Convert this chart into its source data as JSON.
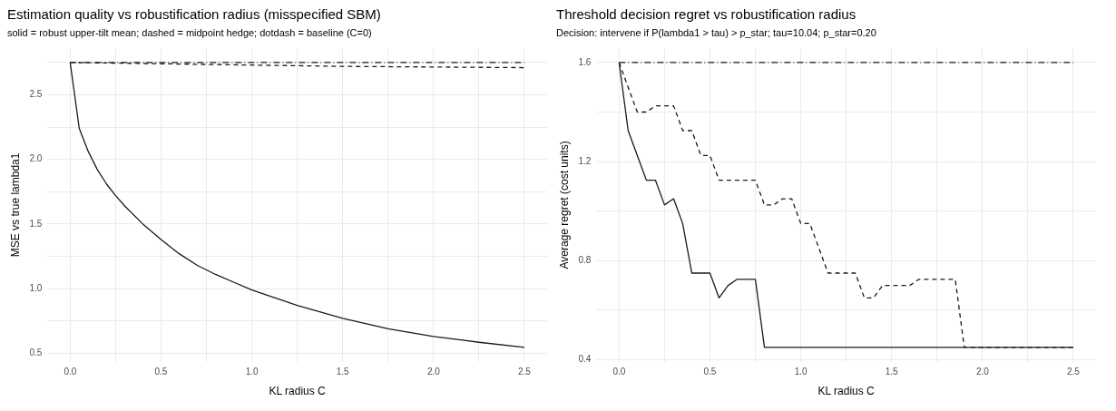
{
  "chart_data": [
    {
      "type": "line",
      "title": "Estimation quality vs robustification radius (misspecified SBM)",
      "subtitle": "solid = robust upper-tilt mean; dashed = midpoint hedge; dotdash = baseline (C=0)",
      "xlabel": "KL radius C",
      "ylabel": "MSE vs true lambda1",
      "xlim": [
        -0.125,
        2.625
      ],
      "ylim": [
        0.435,
        2.86
      ],
      "xticks": [
        {
          "value": 0,
          "label": "0.0"
        },
        {
          "value": 0.25,
          "label": null
        },
        0.5,
        {
          "value": 0.75,
          "label": null
        },
        {
          "value": 1,
          "label": "1.0"
        },
        {
          "value": 1.25,
          "label": null
        },
        1.5,
        {
          "value": 1.75,
          "label": null
        },
        {
          "value": 2,
          "label": "2.0"
        },
        {
          "value": 2.25,
          "label": null
        },
        2.5
      ],
      "yticks": [
        0.5,
        {
          "value": 0.75,
          "label": null
        },
        {
          "value": 1,
          "label": "1.0"
        },
        {
          "value": 1.25,
          "label": null
        },
        1.5,
        {
          "value": 1.75,
          "label": null
        },
        {
          "value": 2,
          "label": "2.0"
        },
        {
          "value": 2.25,
          "label": null
        },
        2.5,
        {
          "value": 2.75,
          "label": null
        }
      ],
      "grid": true,
      "legend": false,
      "marker": "none",
      "series": [
        {
          "color": "#1a1a1a",
          "line_style": "solid",
          "x": [
            0,
            0.05,
            0.1,
            0.15,
            0.2,
            0.25,
            0.3,
            0.4,
            0.5,
            0.6,
            0.7,
            0.8,
            0.9,
            1.0,
            1.25,
            1.5,
            1.75,
            2.0,
            2.25,
            2.5
          ],
          "values": [
            2.75,
            2.24,
            2.06,
            1.92,
            1.81,
            1.72,
            1.64,
            1.5,
            1.38,
            1.27,
            1.18,
            1.11,
            1.05,
            0.99,
            0.87,
            0.77,
            0.69,
            0.63,
            0.585,
            0.545
          ]
        },
        {
          "color": "#1a1a1a",
          "line_style": "dashed",
          "x": [
            0,
            0.5,
            1.0,
            1.5,
            2.0,
            2.5
          ],
          "values": [
            2.75,
            2.74,
            2.73,
            2.72,
            2.715,
            2.71
          ]
        },
        {
          "color": "#1a1a1a",
          "line_style": "dashdot",
          "x": [
            0,
            2.5
          ],
          "values": [
            2.75,
            2.75
          ]
        }
      ]
    },
    {
      "type": "line",
      "title": "Threshold decision regret vs robustification radius",
      "subtitle": "Decision: intervene if P(lambda1 > tau) > p_star; tau=10.04; p_star=0.20",
      "xlabel": "KL radius C",
      "ylabel": "Average regret (cost units)",
      "xlim": [
        -0.125,
        2.625
      ],
      "ylim": [
        0.3925,
        1.6575
      ],
      "xticks": [
        {
          "value": 0,
          "label": "0.0"
        },
        {
          "value": 0.25,
          "label": null
        },
        0.5,
        {
          "value": 0.75,
          "label": null
        },
        {
          "value": 1,
          "label": "1.0"
        },
        {
          "value": 1.25,
          "label": null
        },
        1.5,
        {
          "value": 1.75,
          "label": null
        },
        {
          "value": 2,
          "label": "2.0"
        },
        {
          "value": 2.25,
          "label": null
        },
        2.5
      ],
      "yticks": [
        0.4,
        {
          "value": 0.6,
          "label": null
        },
        0.8,
        {
          "value": 1.0,
          "label": null
        },
        1.2,
        {
          "value": 1.4,
          "label": null
        },
        1.6
      ],
      "grid": true,
      "legend": false,
      "marker": "none",
      "series": [
        {
          "color": "#1a1a1a",
          "line_style": "solid",
          "x": [
            0,
            0.05,
            0.1,
            0.15,
            0.2,
            0.25,
            0.3,
            0.35,
            0.4,
            0.45,
            0.5,
            0.55,
            0.6,
            0.65,
            0.7,
            0.75,
            0.8,
            2.5
          ],
          "values": [
            1.6,
            1.325,
            1.225,
            1.125,
            1.125,
            1.025,
            1.05,
            0.95,
            0.75,
            0.75,
            0.75,
            0.65,
            0.7,
            0.725,
            0.725,
            0.725,
            0.45,
            0.45
          ]
        },
        {
          "color": "#1a1a1a",
          "line_style": "dashed",
          "x": [
            0,
            0.05,
            0.1,
            0.15,
            0.2,
            0.25,
            0.3,
            0.35,
            0.4,
            0.45,
            0.5,
            0.55,
            0.6,
            0.65,
            0.7,
            0.75,
            0.8,
            0.85,
            0.9,
            0.95,
            1.0,
            1.05,
            1.1,
            1.15,
            1.2,
            1.25,
            1.3,
            1.35,
            1.4,
            1.45,
            1.5,
            1.55,
            1.6,
            1.65,
            1.7,
            1.75,
            1.8,
            1.85,
            1.9,
            2.5
          ],
          "values": [
            1.6,
            1.5,
            1.4,
            1.4,
            1.425,
            1.425,
            1.425,
            1.325,
            1.325,
            1.225,
            1.225,
            1.125,
            1.125,
            1.125,
            1.125,
            1.125,
            1.025,
            1.025,
            1.05,
            1.05,
            0.95,
            0.95,
            0.85,
            0.75,
            0.75,
            0.75,
            0.75,
            0.65,
            0.65,
            0.7,
            0.7,
            0.7,
            0.7,
            0.725,
            0.725,
            0.725,
            0.725,
            0.725,
            0.45,
            0.45
          ]
        },
        {
          "color": "#1a1a1a",
          "line_style": "dashdot",
          "x": [
            0,
            2.5
          ],
          "values": [
            1.6,
            1.6
          ]
        }
      ]
    }
  ]
}
